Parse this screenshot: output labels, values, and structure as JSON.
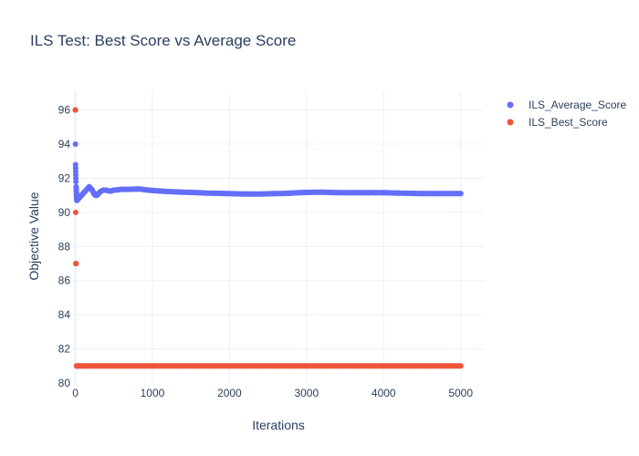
{
  "chart_data": {
    "type": "scatter",
    "title": "ILS Test: Best Score vs Average Score",
    "xlabel": "Iterations",
    "ylabel": "Objective Value",
    "xlim": [
      -30,
      5300
    ],
    "ylim": [
      80,
      97.1
    ],
    "xticks": [
      0,
      1000,
      2000,
      3000,
      4000,
      5000
    ],
    "yticks": [
      80,
      82,
      84,
      86,
      88,
      90,
      92,
      94,
      96
    ],
    "grid": true,
    "legend_position": "top-right",
    "series": [
      {
        "name": "ILS_Average_Score",
        "color": "#636efa",
        "x": [
          0,
          1,
          2,
          3,
          4,
          5,
          6,
          8,
          10,
          12,
          15,
          18,
          20,
          25,
          30,
          40,
          50,
          60,
          70,
          80,
          90,
          100,
          110,
          120,
          130,
          140,
          150,
          160,
          170,
          180,
          190,
          200,
          210,
          220,
          230,
          240,
          250,
          260,
          270,
          280,
          290,
          300,
          320,
          340,
          360,
          380,
          400,
          420,
          440,
          460,
          480,
          500,
          550,
          600,
          650,
          700,
          750,
          800,
          850,
          900,
          950,
          1000,
          1100,
          1200,
          1300,
          1400,
          1500,
          1600,
          1700,
          1800,
          1900,
          2000,
          2100,
          2200,
          2300,
          2400,
          2500,
          2600,
          2700,
          2800,
          2900,
          3000,
          3100,
          3200,
          3300,
          3400,
          3500,
          3600,
          3700,
          3800,
          3900,
          4000,
          4100,
          4200,
          4300,
          4400,
          4500,
          4600,
          4700,
          4800,
          4900,
          5000
        ],
        "y": [
          96,
          94,
          92.8,
          92.6,
          92.4,
          92.2,
          92.0,
          91.8,
          91.5,
          91.3,
          91.0,
          90.8,
          90.7,
          90.8,
          90.75,
          90.8,
          90.85,
          90.9,
          90.95,
          91.0,
          91.05,
          91.1,
          91.15,
          91.2,
          91.25,
          91.3,
          91.35,
          91.4,
          91.45,
          91.5,
          91.45,
          91.4,
          91.35,
          91.3,
          91.2,
          91.1,
          91.05,
          91.0,
          91.0,
          91.0,
          91.05,
          91.1,
          91.2,
          91.25,
          91.3,
          91.3,
          91.3,
          91.28,
          91.25,
          91.25,
          91.28,
          91.3,
          91.32,
          91.35,
          91.35,
          91.35,
          91.36,
          91.37,
          91.36,
          91.33,
          91.3,
          91.28,
          91.25,
          91.22,
          91.2,
          91.18,
          91.17,
          91.15,
          91.13,
          91.12,
          91.11,
          91.1,
          91.09,
          91.08,
          91.08,
          91.08,
          91.09,
          91.1,
          91.11,
          91.13,
          91.15,
          91.17,
          91.18,
          91.18,
          91.17,
          91.16,
          91.15,
          91.15,
          91.15,
          91.15,
          91.15,
          91.15,
          91.14,
          91.13,
          91.12,
          91.11,
          91.1,
          91.1,
          91.1,
          91.1,
          91.1,
          91.1
        ]
      },
      {
        "name": "ILS_Best_Score",
        "color": "#ef553b",
        "x": [
          0,
          2,
          4,
          6,
          8,
          10,
          15,
          20,
          30,
          40,
          50,
          60,
          80,
          100,
          150,
          200,
          300,
          400,
          500,
          600,
          700,
          800,
          900,
          1000,
          1200,
          1400,
          1600,
          1800,
          2000,
          2200,
          2400,
          2600,
          2800,
          3000,
          3200,
          3400,
          3600,
          3800,
          4000,
          4200,
          4400,
          4600,
          4800,
          5000
        ],
        "y": [
          96,
          96,
          90,
          87,
          87,
          87,
          81,
          81,
          81,
          81,
          81,
          81,
          81,
          81,
          81,
          81,
          81,
          81,
          81,
          81,
          81,
          81,
          81,
          81,
          81,
          81,
          81,
          81,
          81,
          81,
          81,
          81,
          81,
          81,
          81,
          81,
          81,
          81,
          81,
          81,
          81,
          81,
          81,
          81
        ]
      }
    ]
  }
}
